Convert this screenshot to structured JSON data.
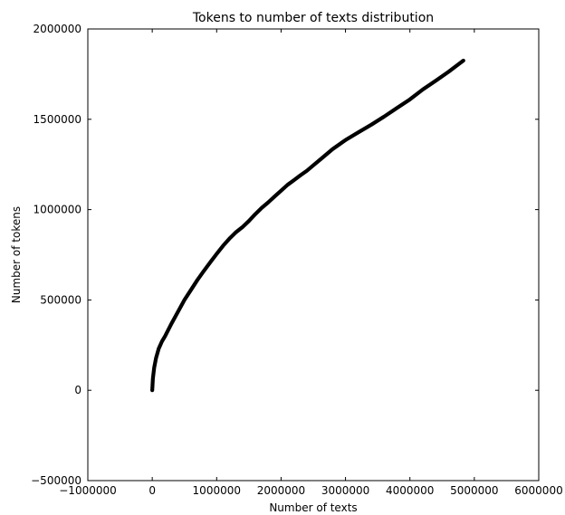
{
  "chart_data": {
    "type": "line",
    "title": "Tokens to number of texts distribution",
    "xlabel": "Number of texts",
    "ylabel": "Number of tokens",
    "xlim": [
      -1000000,
      6000000
    ],
    "ylim": [
      -500000,
      2000000
    ],
    "xticks": [
      -1000000,
      0,
      1000000,
      2000000,
      3000000,
      4000000,
      5000000,
      6000000
    ],
    "xtick_labels": [
      "−1000000",
      "0",
      "1000000",
      "2000000",
      "3000000",
      "4000000",
      "5000000",
      "6000000"
    ],
    "yticks": [
      -500000,
      0,
      500000,
      1000000,
      1500000,
      2000000
    ],
    "ytick_labels": [
      "−500000",
      "0",
      "500000",
      "1000000",
      "1500000",
      "2000000"
    ],
    "grid": false,
    "series": [
      {
        "color": "#000000",
        "x": [
          0,
          10000,
          30000,
          60000,
          100000,
          150000,
          200000,
          300000,
          400000,
          500000,
          600000,
          700000,
          800000,
          900000,
          1000000,
          1100000,
          1200000,
          1300000,
          1400000,
          1500000,
          1600000,
          1700000,
          1800000,
          1900000,
          2000000,
          2100000,
          2200000,
          2300000,
          2400000,
          2500000,
          2600000,
          2700000,
          2800000,
          2900000,
          3000000,
          3200000,
          3400000,
          3600000,
          3800000,
          4000000,
          4200000,
          4400000,
          4600000,
          4830000
        ],
        "y": [
          0,
          65000,
          125000,
          180000,
          230000,
          270000,
          300000,
          370000,
          435000,
          500000,
          555000,
          610000,
          660000,
          708000,
          755000,
          800000,
          840000,
          875000,
          903000,
          937000,
          975000,
          1010000,
          1040000,
          1073000,
          1105000,
          1137000,
          1163000,
          1190000,
          1215000,
          1245000,
          1275000,
          1305000,
          1335000,
          1360000,
          1385000,
          1428000,
          1470000,
          1515000,
          1563000,
          1610000,
          1665000,
          1713000,
          1763000,
          1825000
        ]
      }
    ]
  }
}
